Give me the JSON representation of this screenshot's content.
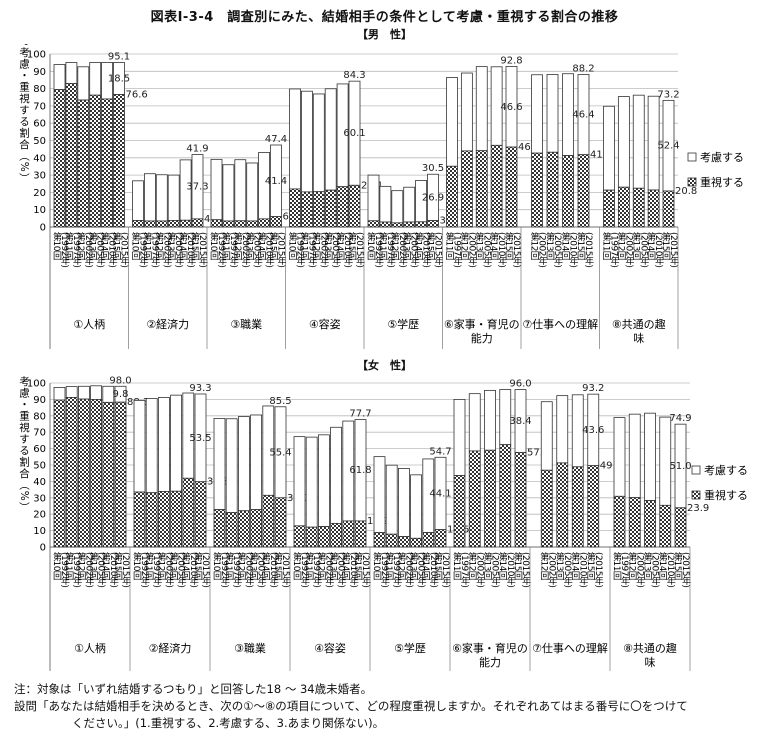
{
  "title": "図表Ⅰ-3-4　調査別にみた、結婚相手の条件として考慮・重視する割合の推移",
  "notes": [
    "注：対象は「いずれ結婚するつもり」と回答した18 ～ 34歳未婚者。",
    "設問「あなたは結婚相手を決めるとき、次の①～⑧の項目について、どの程度重視しますか。それぞれあてはまる番号に〇をつけて",
    "ください。」(1.重視する、2.考慮する、3.あまり関係ない)。"
  ],
  "colors": {
    "bar_outline": "#333333",
    "grid": "#bbbbbb",
    "fill": "#ffffff"
  },
  "chart_data": [
    {
      "type": "bar",
      "subtitle": "【男　性】",
      "ylabel": "結婚相手の条件として考慮・重視する割合（%）",
      "ylim": [
        0,
        100
      ],
      "yticks": [
        0,
        10,
        20,
        30,
        40,
        50,
        60,
        70,
        80,
        90,
        100
      ],
      "legend": {
        "position": "right",
        "entries": [
          "考慮する",
          "重視する"
        ]
      },
      "groups": [
        {
          "label": [
            "①人柄"
          ],
          "surveys": [
            "第10回",
            "第11回",
            "第12回",
            "第13回",
            "第14回",
            "第15回"
          ],
          "years": [
            "(1992年)",
            "(1997年)",
            "(2002年)",
            "(2005年)",
            "(2010年)",
            "(2015年)"
          ],
          "total": [
            93.9,
            95.1,
            92.6,
            95.1,
            95.1,
            95.1
          ],
          "emphasis": [
            79.5,
            83.0,
            73.4,
            76.2,
            74.0,
            76.6
          ],
          "labels": [
            [
              "95.1",
              5,
              "total"
            ],
            [
              "76.6",
              5,
              "right"
            ],
            [
              "18.5",
              5,
              "mid"
            ]
          ]
        },
        {
          "label": [
            "②経済力"
          ],
          "surveys": [
            "第10回",
            "第11回",
            "第12回",
            "第13回",
            "第14回",
            "第15回"
          ],
          "years": [
            "(1992年)",
            "(1997年)",
            "(2002年)",
            "(2005年)",
            "(2010年)",
            "(2015年)"
          ],
          "total": [
            26.7,
            30.8,
            30.2,
            30.0,
            38.8,
            41.9
          ],
          "emphasis": [
            3.8,
            3.5,
            3.5,
            3.8,
            3.9,
            4.7
          ],
          "labels": [
            [
              "41.9",
              5,
              "total"
            ],
            [
              "37.3",
              5,
              "mid"
            ],
            [
              "4.7",
              5,
              "right"
            ]
          ]
        },
        {
          "label": [
            "③職業"
          ],
          "surveys": [
            "第10回",
            "第11回",
            "第12回",
            "第13回",
            "第14回",
            "第15回"
          ],
          "years": [
            "(1992年)",
            "(1997年)",
            "(2002年)",
            "(2005年)",
            "(2010年)",
            "(2015年)"
          ],
          "total": [
            39.1,
            36.0,
            38.9,
            37.0,
            43.1,
            47.4
          ],
          "emphasis": [
            4.2,
            3.5,
            3.6,
            3.5,
            4.7,
            6.0
          ],
          "labels": [
            [
              "47.4",
              5,
              "total"
            ],
            [
              "41.4",
              5,
              "mid"
            ],
            [
              "6.0",
              5,
              "right"
            ]
          ]
        },
        {
          "label": [
            "④容姿"
          ],
          "surveys": [
            "第10回",
            "第11回",
            "第12回",
            "第13回",
            "第14回",
            "第15回"
          ],
          "years": [
            "(1992年)",
            "(1997年)",
            "(2002年)",
            "(2005年)",
            "(2010年)",
            "(2015年)"
          ],
          "total": [
            79.8,
            78.5,
            76.9,
            79.9,
            82.7,
            84.3
          ],
          "emphasis": [
            22.0,
            20.3,
            20.4,
            21.3,
            23.3,
            24.1
          ],
          "labels": [
            [
              "84.3",
              5,
              "total"
            ],
            [
              "60.1",
              5,
              "mid"
            ],
            [
              "24.1",
              5,
              "right"
            ]
          ]
        },
        {
          "label": [
            "⑤学歴"
          ],
          "surveys": [
            "第10回",
            "第11回",
            "第12回",
            "第13回",
            "第14回",
            "第15回"
          ],
          "years": [
            "(1992年)",
            "(1997年)",
            "(2002年)",
            "(2005年)",
            "(2010年)",
            "(2015年)"
          ],
          "total": [
            30.0,
            23.5,
            21.0,
            23.0,
            26.9,
            30.5
          ],
          "emphasis": [
            3.6,
            2.9,
            2.4,
            2.9,
            3.0,
            3.7
          ],
          "labels": [
            [
              "30.5",
              5,
              "total"
            ],
            [
              "26.9",
              5,
              "mid"
            ],
            [
              "3.7",
              5,
              "right"
            ]
          ]
        },
        {
          "label": [
            "⑥家事・育児の",
            "能力"
          ],
          "surveys": [
            "第11回",
            "第12回",
            "第13回",
            "第14回",
            "第15回"
          ],
          "years": [
            "(1997年)",
            "(2002年)",
            "(2005年)",
            "(2010年)",
            "(2015年)"
          ],
          "total": [
            86.4,
            89.0,
            92.7,
            92.6,
            92.8
          ],
          "emphasis": [
            35.1,
            44.0,
            44.1,
            47.2,
            46.2
          ],
          "labels": [
            [
              "92.8",
              4,
              "total"
            ],
            [
              "46.6",
              4,
              "mid"
            ],
            [
              "46.2",
              4,
              "right"
            ]
          ]
        },
        {
          "label": [
            "⑦仕事への理解"
          ],
          "surveys": [
            "第12回",
            "第13回",
            "第14回",
            "第15回"
          ],
          "years": [
            "(2002年)",
            "(2005年)",
            "(2010年)",
            "(2015年)"
          ],
          "total": [
            88.0,
            88.2,
            88.6,
            88.2
          ],
          "emphasis": [
            42.7,
            43.2,
            41.3,
            41.8
          ],
          "labels": [
            [
              "88.2",
              3,
              "total"
            ],
            [
              "46.4",
              3,
              "mid"
            ],
            [
              "41.8",
              3,
              "right"
            ]
          ]
        },
        {
          "label": [
            "⑧共通の趣",
            "味"
          ],
          "surveys": [
            "第11回",
            "第12回",
            "第13回",
            "第14回",
            "第15回"
          ],
          "years": [
            "(1997年)",
            "(2002年)",
            "(2005年)",
            "(2010年)",
            "(2015年)"
          ],
          "total": [
            69.8,
            75.4,
            76.2,
            75.6,
            73.2
          ],
          "emphasis": [
            21.3,
            23.0,
            22.4,
            21.4,
            20.8
          ],
          "labels": [
            [
              "73.2",
              4,
              "total"
            ],
            [
              "52.4",
              4,
              "mid"
            ],
            [
              "20.8",
              4,
              "right"
            ]
          ]
        }
      ]
    },
    {
      "type": "bar",
      "subtitle": "【女　性】",
      "ylabel": "結婚相手の条件として考慮・重視する割合（%）",
      "ylim": [
        0,
        100
      ],
      "yticks": [
        0,
        10,
        20,
        30,
        40,
        50,
        60,
        70,
        80,
        90,
        100
      ],
      "legend": {
        "position": "right",
        "entries": [
          "考慮する",
          "重視する"
        ]
      },
      "groups": [
        {
          "label": [
            "①人柄"
          ],
          "surveys": [
            "第10回",
            "第11回",
            "第12回",
            "第13回",
            "第14回",
            "第15回"
          ],
          "years": [
            "(1992年)",
            "(1997年)",
            "(2002年)",
            "(2005年)",
            "(2010年)",
            "(2015年)"
          ],
          "total": [
            97.3,
            97.8,
            98.0,
            98.3,
            98.0,
            98.0
          ],
          "emphasis": [
            89.6,
            91.2,
            90.2,
            90.0,
            88.2,
            88.3
          ],
          "labels": [
            [
              "98.0",
              5,
              "total"
            ],
            [
              "88.3",
              5,
              "right"
            ],
            [
              "9.8",
              5,
              "mid"
            ]
          ]
        },
        {
          "label": [
            "②経済力"
          ],
          "surveys": [
            "第10回",
            "第11回",
            "第12回",
            "第13回",
            "第14回",
            "第15回"
          ],
          "years": [
            "(1992年)",
            "(1997年)",
            "(2002年)",
            "(2005年)",
            "(2010年)",
            "(2015年)"
          ],
          "total": [
            89.4,
            90.5,
            91.2,
            92.6,
            93.9,
            93.3
          ],
          "emphasis": [
            33.5,
            33.1,
            33.9,
            34.0,
            41.9,
            39.8
          ],
          "labels": [
            [
              "93.3",
              5,
              "total"
            ],
            [
              "53.5",
              5,
              "mid"
            ],
            [
              "39.8",
              5,
              "right"
            ]
          ]
        },
        {
          "label": [
            "③職業"
          ],
          "surveys": [
            "第10回",
            "第11回",
            "第12回",
            "第13回",
            "第14回",
            "第15回"
          ],
          "years": [
            "(1992年)",
            "(1997年)",
            "(2002年)",
            "(2005年)",
            "(2010年)",
            "(2015年)"
          ],
          "total": [
            78.4,
            78.2,
            79.5,
            80.5,
            86.0,
            85.5
          ],
          "emphasis": [
            22.8,
            21.1,
            22.1,
            22.8,
            31.5,
            30.0
          ],
          "labels": [
            [
              "85.5",
              5,
              "total"
            ],
            [
              "55.4",
              5,
              "mid"
            ],
            [
              "30.0",
              5,
              "right"
            ]
          ]
        },
        {
          "label": [
            "④容姿"
          ],
          "surveys": [
            "第10回",
            "第11回",
            "第12回",
            "第13回",
            "第14回",
            "第15回"
          ],
          "years": [
            "(1992年)",
            "(1997年)",
            "(2002年)",
            "(2005年)",
            "(2010年)",
            "(2015年)"
          ],
          "total": [
            67.3,
            67.0,
            68.4,
            73.0,
            76.8,
            77.7
          ],
          "emphasis": [
            12.9,
            12.1,
            12.5,
            14.4,
            15.9,
            15.9
          ],
          "labels": [
            [
              "77.7",
              5,
              "total"
            ],
            [
              "61.8",
              5,
              "mid"
            ],
            [
              "15.9",
              5,
              "right"
            ]
          ]
        },
        {
          "label": [
            "⑤学歴"
          ],
          "surveys": [
            "第10回",
            "第11回",
            "第12回",
            "第13回",
            "第14回",
            "第15回"
          ],
          "years": [
            "(1992年)",
            "(1997年)",
            "(2002年)",
            "(2005年)",
            "(2010年)",
            "(2015年)"
          ],
          "total": [
            55.1,
            49.9,
            47.9,
            44.0,
            53.7,
            54.7
          ],
          "emphasis": [
            8.9,
            7.8,
            6.4,
            5.3,
            8.8,
            10.6
          ],
          "labels": [
            [
              "54.7",
              5,
              "total"
            ],
            [
              "44.1",
              5,
              "mid"
            ],
            [
              "10.6",
              5,
              "right"
            ]
          ]
        },
        {
          "label": [
            "⑥家事・育児の",
            "能力"
          ],
          "surveys": [
            "第11回",
            "第12回",
            "第13回",
            "第14回",
            "第15回"
          ],
          "years": [
            "(1997年)",
            "(2002年)",
            "(2005年)",
            "(2010年)",
            "(2015年)"
          ],
          "total": [
            90.0,
            93.5,
            95.5,
            96.0,
            96.0
          ],
          "emphasis": [
            43.6,
            58.6,
            59.0,
            62.4,
            57.7
          ],
          "labels": [
            [
              "96.0",
              4,
              "total"
            ],
            [
              "38.4",
              4,
              "mid"
            ],
            [
              "57.7",
              4,
              "right"
            ]
          ]
        },
        {
          "label": [
            "⑦仕事への理解"
          ],
          "surveys": [
            "第12回",
            "第13回",
            "第14回",
            "第15回"
          ],
          "years": [
            "(2002年)",
            "(2005年)",
            "(2010年)",
            "(2015年)"
          ],
          "total": [
            88.6,
            92.3,
            92.8,
            93.2
          ],
          "emphasis": [
            46.8,
            51.3,
            48.9,
            49.6
          ],
          "labels": [
            [
              "93.2",
              3,
              "total"
            ],
            [
              "43.6",
              3,
              "mid"
            ],
            [
              "49.6",
              3,
              "right"
            ]
          ]
        },
        {
          "label": [
            "⑧共通の趣",
            "味"
          ],
          "surveys": [
            "第11回",
            "第12回",
            "第13回",
            "第14回",
            "第15回"
          ],
          "years": [
            "(1997年)",
            "(2002年)",
            "(2005年)",
            "(2010年)",
            "(2015年)"
          ],
          "total": [
            78.9,
            81.0,
            81.6,
            79.2,
            74.9
          ],
          "emphasis": [
            30.9,
            30.1,
            28.3,
            25.4,
            23.9
          ],
          "labels": [
            [
              "74.9",
              4,
              "total"
            ],
            [
              "51.0",
              4,
              "mid"
            ],
            [
              "23.9",
              4,
              "right"
            ]
          ]
        }
      ]
    }
  ]
}
